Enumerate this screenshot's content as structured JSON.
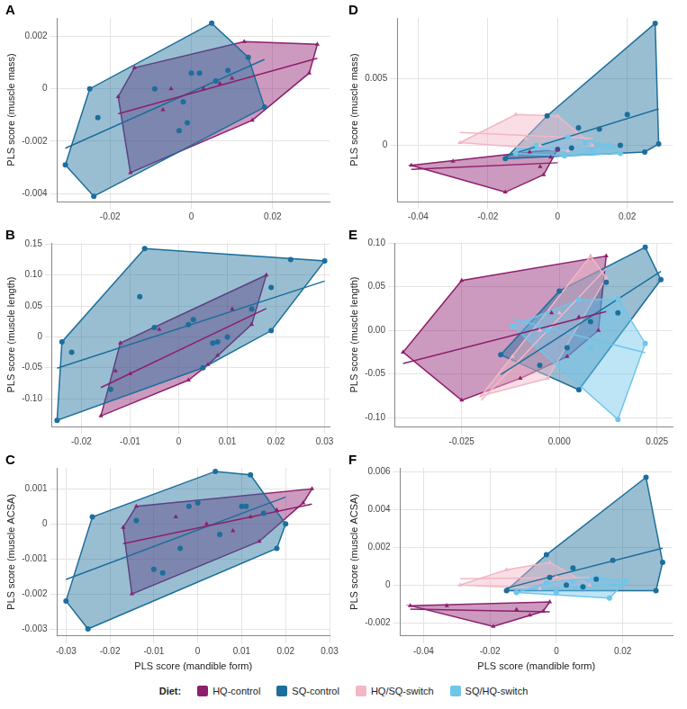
{
  "legend": "bottom",
  "legend_title": "Diet:",
  "chart_data": [
    {
      "type": "scatter",
      "panel": "A",
      "y_label": "PLS score (muscle mass)",
      "grid": true,
      "xlim": [
        -0.033,
        0.034
      ],
      "xticks": [
        -0.02,
        0,
        0.02
      ],
      "ylim": [
        -0.0043,
        0.0027
      ],
      "yticks": [
        -0.004,
        -0.002,
        0,
        0.002
      ],
      "series": [
        {
          "name": "HQ-control",
          "color": "#8e1f6e",
          "marker": "triangle",
          "x": [
            -0.018,
            -0.014,
            -0.015,
            -0.007,
            -0.005,
            0.003,
            0.007,
            0.01,
            0.013,
            0.015,
            0.029,
            0.031
          ],
          "values": [
            -0.0003,
            0.0008,
            -0.0032,
            -0.0008,
            0.0,
            0.0,
            0.0002,
            0.0004,
            0.0018,
            -0.0012,
            0.0006,
            0.0017
          ]
        },
        {
          "name": "SQ-control",
          "color": "#1c6e9c",
          "marker": "circle",
          "x": [
            -0.031,
            -0.025,
            -0.024,
            -0.023,
            -0.009,
            -0.003,
            -0.002,
            -0.001,
            0.0,
            0.002,
            0.005,
            0.006,
            0.009,
            0.014,
            0.018
          ],
          "values": [
            -0.0029,
            0.0,
            -0.0041,
            -0.0011,
            0.0,
            -0.0016,
            -0.0005,
            -0.0013,
            0.0006,
            0.0006,
            0.0025,
            0.0003,
            0.0007,
            0.0012,
            -0.0007
          ]
        }
      ]
    },
    {
      "type": "scatter",
      "panel": "D",
      "y_label": "PLS score (muscle mass)",
      "grid": true,
      "xlim": [
        -0.046,
        0.033
      ],
      "xticks": [
        -0.04,
        -0.02,
        0,
        0.02
      ],
      "ylim": [
        -0.0042,
        0.0095
      ],
      "yticks": [
        0,
        0.005
      ],
      "series": [
        {
          "name": "HQ-control",
          "color": "#8e1f6e",
          "marker": "triangle",
          "x": [
            -0.042,
            -0.03,
            -0.015,
            -0.008,
            -0.005,
            -0.004,
            -0.002,
            0.0
          ],
          "values": [
            -0.0015,
            -0.0012,
            -0.0035,
            -0.0005,
            -0.0016,
            -0.0022,
            -0.0009,
            -0.0003
          ]
        },
        {
          "name": "SQ-control",
          "color": "#1c6e9c",
          "marker": "circle",
          "x": [
            -0.015,
            -0.003,
            0.0,
            0.004,
            0.006,
            0.012,
            0.018,
            0.02,
            0.025,
            0.028,
            0.029
          ],
          "values": [
            -0.001,
            0.0022,
            -0.0003,
            -0.0002,
            0.0013,
            0.0012,
            0.0,
            0.0023,
            -0.0005,
            0.0091,
            0.0001
          ]
        },
        {
          "name": "HQ/SQ-switch",
          "color": "#f2b6c6",
          "marker": "triangle",
          "x": [
            -0.028,
            -0.012,
            -0.009,
            -0.005,
            0.0,
            0.003,
            0.01
          ],
          "values": [
            0.0002,
            0.0023,
            0.0005,
            0.0,
            0.0022,
            -0.0004,
            0.0
          ]
        },
        {
          "name": "SQ/HQ-switch",
          "color": "#6ec6ea",
          "marker": "circle",
          "x": [
            -0.012,
            -0.006,
            0.002,
            0.003,
            0.008,
            0.01,
            0.015,
            0.018
          ],
          "values": [
            -0.0006,
            0.0,
            -0.0008,
            0.0006,
            0.0002,
            -0.0004,
            0.0,
            -0.0006
          ]
        }
      ]
    },
    {
      "type": "scatter",
      "panel": "B",
      "y_label": "PLS score (muscle length)",
      "grid": true,
      "xlim": [
        -0.026,
        0.031
      ],
      "xticks": [
        -0.02,
        -0.01,
        0,
        0.01,
        0.02,
        0.03
      ],
      "ylim": [
        -0.145,
        0.152
      ],
      "yticks": [
        {
          "value": -0.1,
          "label": "-0.10"
        },
        -0.05,
        0,
        0.05,
        {
          "value": 0.1,
          "label": "0.10"
        },
        0.15
      ],
      "series": [
        {
          "name": "HQ-control",
          "color": "#8e1f6e",
          "marker": "triangle",
          "x": [
            -0.016,
            -0.013,
            -0.012,
            -0.01,
            -0.004,
            0.002,
            0.006,
            0.008,
            0.011,
            0.015,
            0.018
          ],
          "values": [
            -0.128,
            -0.055,
            -0.01,
            -0.06,
            0.012,
            -0.07,
            -0.045,
            -0.03,
            0.045,
            0.02,
            0.1
          ]
        },
        {
          "name": "SQ-control",
          "color": "#1c6e9c",
          "marker": "circle",
          "x": [
            -0.025,
            -0.024,
            -0.022,
            -0.014,
            -0.008,
            -0.007,
            -0.005,
            0.002,
            0.003,
            0.005,
            0.007,
            0.008,
            0.01,
            0.015,
            0.019,
            0.019,
            0.023,
            0.03
          ],
          "values": [
            -0.135,
            -0.008,
            -0.025,
            -0.085,
            0.065,
            0.143,
            0.015,
            0.02,
            0.028,
            -0.05,
            -0.01,
            -0.008,
            0.0,
            0.045,
            0.08,
            0.01,
            0.125,
            0.123
          ]
        }
      ]
    },
    {
      "type": "scatter",
      "panel": "E",
      "y_label": "PLS score (muscle length)",
      "grid": true,
      "xlim": [
        -0.042,
        0.029
      ],
      "xticks": [
        -0.025,
        {
          "value": 0,
          "label": "0.000"
        },
        0.025
      ],
      "ylim": [
        -0.11,
        0.1
      ],
      "yticks": [
        {
          "value": -0.1,
          "label": "-0.10"
        },
        -0.05,
        {
          "value": 0,
          "label": "0.00"
        },
        0.05,
        {
          "value": 0.1,
          "label": "0.10"
        }
      ],
      "series": [
        {
          "name": "HQ-control",
          "color": "#8e1f6e",
          "marker": "triangle",
          "x": [
            -0.04,
            -0.025,
            -0.025,
            -0.01,
            -0.002,
            0.002,
            0.005,
            0.01,
            0.012
          ],
          "values": [
            -0.025,
            0.057,
            -0.08,
            -0.055,
            0.02,
            -0.03,
            0.015,
            0.0,
            0.085
          ]
        },
        {
          "name": "SQ-control",
          "color": "#1c6e9c",
          "marker": "circle",
          "x": [
            -0.015,
            -0.005,
            0.0,
            0.002,
            0.005,
            0.008,
            0.012,
            0.015,
            0.022,
            0.026
          ],
          "values": [
            -0.028,
            -0.04,
            0.045,
            -0.02,
            -0.068,
            0.01,
            0.055,
            0.02,
            0.095,
            0.058
          ]
        },
        {
          "name": "HQ/SQ-switch",
          "color": "#f2b6c6",
          "marker": "triangle",
          "x": [
            -0.02,
            -0.012,
            -0.005,
            -0.003,
            0.0,
            0.008,
            0.012
          ],
          "values": [
            -0.075,
            -0.03,
            0.0,
            -0.055,
            0.02,
            0.085,
            0.06
          ]
        },
        {
          "name": "SQ/HQ-switch",
          "color": "#6ec6ea",
          "marker": "circle",
          "x": [
            -0.012,
            -0.003,
            0.005,
            0.008,
            0.015,
            0.015,
            0.022
          ],
          "values": [
            0.005,
            0.0,
            0.035,
            -0.02,
            0.036,
            -0.102,
            -0.015
          ]
        }
      ]
    },
    {
      "type": "scatter",
      "panel": "C",
      "y_label": "PLS score (muscle ACSA)",
      "x_label": "PLS score (mandible form)",
      "grid": true,
      "xlim": [
        -0.032,
        0.03
      ],
      "xticks": [
        -0.03,
        -0.02,
        -0.01,
        0,
        0.01,
        0.02,
        0.03
      ],
      "ylim": [
        -0.0032,
        0.0016
      ],
      "yticks": [
        -0.003,
        -0.002,
        -0.001,
        0,
        0.001
      ],
      "series": [
        {
          "name": "HQ-control",
          "color": "#8e1f6e",
          "marker": "triangle",
          "x": [
            -0.017,
            -0.015,
            -0.014,
            -0.005,
            0.002,
            0.008,
            0.012,
            0.014,
            0.018,
            0.024,
            0.026
          ],
          "values": [
            -0.0001,
            -0.002,
            0.0005,
            0.0002,
            0.0,
            -0.0002,
            0.0002,
            -0.0005,
            0.0004,
            0.0006,
            0.001
          ]
        },
        {
          "name": "SQ-control",
          "color": "#1c6e9c",
          "marker": "circle",
          "x": [
            -0.03,
            -0.025,
            -0.024,
            -0.014,
            -0.01,
            -0.008,
            -0.004,
            -0.002,
            0.0,
            0.004,
            0.005,
            0.01,
            0.011,
            0.012,
            0.015,
            0.018,
            0.02
          ],
          "values": [
            -0.0022,
            -0.003,
            0.0002,
            0.0001,
            -0.0013,
            -0.0014,
            -0.0007,
            0.0005,
            0.0006,
            0.0015,
            -0.0003,
            0.0005,
            0.0005,
            0.0014,
            0.0003,
            -0.0007,
            0.0
          ]
        }
      ]
    },
    {
      "type": "scatter",
      "panel": "F",
      "y_label": "PLS score (muscle ACSA)",
      "x_label": "PLS score (mandible form)",
      "grid": true,
      "xlim": [
        -0.047,
        0.035
      ],
      "xticks": [
        -0.04,
        -0.02,
        0,
        0.02
      ],
      "ylim": [
        -0.0027,
        0.0062
      ],
      "yticks": [
        -0.002,
        0,
        0.002,
        0.004,
        0.006
      ],
      "series": [
        {
          "name": "HQ-control",
          "color": "#8e1f6e",
          "marker": "triangle",
          "x": [
            -0.044,
            -0.033,
            -0.019,
            -0.012,
            -0.008,
            -0.004,
            -0.002
          ],
          "values": [
            -0.0011,
            -0.0011,
            -0.0022,
            -0.0013,
            -0.0016,
            -0.0014,
            -0.0009
          ]
        },
        {
          "name": "SQ-control",
          "color": "#1c6e9c",
          "marker": "circle",
          "x": [
            -0.015,
            -0.003,
            -0.002,
            0.003,
            0.005,
            0.008,
            0.012,
            0.017,
            0.027,
            0.03,
            0.032
          ],
          "values": [
            -0.0003,
            0.0016,
            0.0004,
            0.0,
            0.0009,
            -0.0001,
            0.0003,
            0.0013,
            0.0057,
            -0.0003,
            0.0012
          ]
        },
        {
          "name": "HQ/SQ-switch",
          "color": "#f2b6c6",
          "marker": "triangle",
          "x": [
            -0.029,
            -0.015,
            -0.005,
            -0.002,
            0.0,
            0.01
          ],
          "values": [
            0.0,
            0.0008,
            -0.0002,
            0.0012,
            0.0004,
            0.0
          ]
        },
        {
          "name": "SQ/HQ-switch",
          "color": "#6ec6ea",
          "marker": "circle",
          "x": [
            -0.012,
            -0.003,
            0.0,
            0.005,
            0.008,
            0.012,
            0.016,
            0.021
          ],
          "values": [
            -0.0004,
            0.0001,
            -0.0004,
            0.0002,
            -0.0001,
            0.0004,
            -0.0007,
            0.0002
          ]
        }
      ]
    }
  ]
}
